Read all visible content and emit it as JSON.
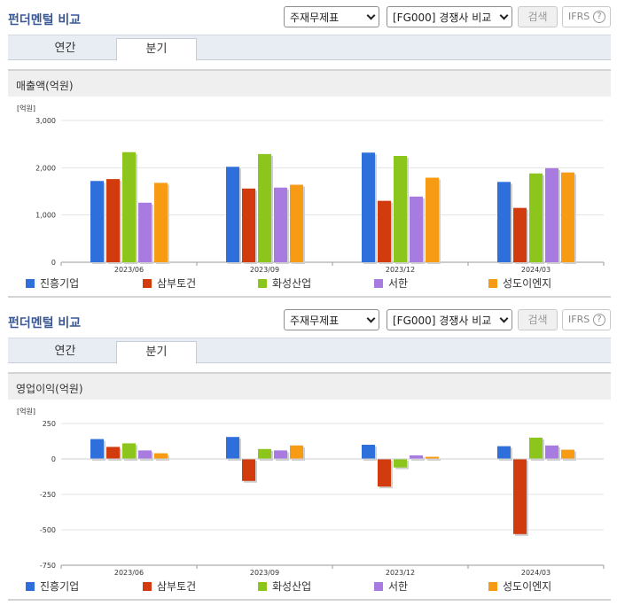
{
  "panels": [
    {
      "title": "펀더멘털 비교",
      "select1": "주재무제표",
      "select2": "[FG000] 경쟁사 비교",
      "search_label": "검색",
      "ifrs_label": "IFRS",
      "help_glyph": "?",
      "tabs": [
        "연간",
        "분기"
      ],
      "active_tab": "분기",
      "section_title": "매출액(억원)"
    },
    {
      "title": "펀더멘털 비교",
      "select1": "주재무제표",
      "select2": "[FG000] 경쟁사 비교",
      "search_label": "검색",
      "ifrs_label": "IFRS",
      "help_glyph": "?",
      "tabs": [
        "연간",
        "분기"
      ],
      "active_tab": "분기",
      "section_title": "영업이익(억원)"
    }
  ],
  "legend_colors": [
    "#2f6fdb",
    "#d13b0e",
    "#8cc61d",
    "#a77be0",
    "#f79b15"
  ],
  "chart_data": [
    {
      "type": "bar",
      "title": "매출액(억원)",
      "unit_label": "[억원]",
      "categories": [
        "2023/06",
        "2023/09",
        "2023/12",
        "2024/03"
      ],
      "ylim": [
        0,
        3000
      ],
      "yticks": [
        0,
        1000,
        2000,
        3000
      ],
      "ytick_labels": [
        "0",
        "1,000",
        "2,000",
        "3,000"
      ],
      "grid": true,
      "legend_position": "bottom",
      "series": [
        {
          "name": "진흥기업",
          "values": [
            1720,
            2020,
            2320,
            1700
          ]
        },
        {
          "name": "삼부토건",
          "values": [
            1760,
            1560,
            1300,
            1150
          ]
        },
        {
          "name": "화성산업",
          "values": [
            2330,
            2290,
            2250,
            1880
          ]
        },
        {
          "name": "서한",
          "values": [
            1260,
            1580,
            1390,
            1990
          ]
        },
        {
          "name": "성도이엔지",
          "values": [
            1680,
            1640,
            1790,
            1900
          ]
        }
      ]
    },
    {
      "type": "bar",
      "title": "영업이익(억원)",
      "unit_label": "[억원]",
      "categories": [
        "2023/06",
        "2023/09",
        "2023/12",
        "2024/03"
      ],
      "ylim": [
        -750,
        250
      ],
      "yticks": [
        -750,
        -500,
        -250,
        0,
        250
      ],
      "ytick_labels": [
        "-750",
        "-500",
        "-250",
        "0",
        "250"
      ],
      "grid": true,
      "legend_position": "bottom",
      "series": [
        {
          "name": "진흥기업",
          "values": [
            140,
            155,
            100,
            90
          ]
        },
        {
          "name": "삼부토건",
          "values": [
            85,
            -155,
            -195,
            -530
          ]
        },
        {
          "name": "화성산업",
          "values": [
            110,
            70,
            -60,
            150
          ]
        },
        {
          "name": "서한",
          "values": [
            60,
            60,
            25,
            95
          ]
        },
        {
          "name": "성도이엔지",
          "values": [
            40,
            95,
            15,
            65
          ]
        }
      ]
    }
  ]
}
